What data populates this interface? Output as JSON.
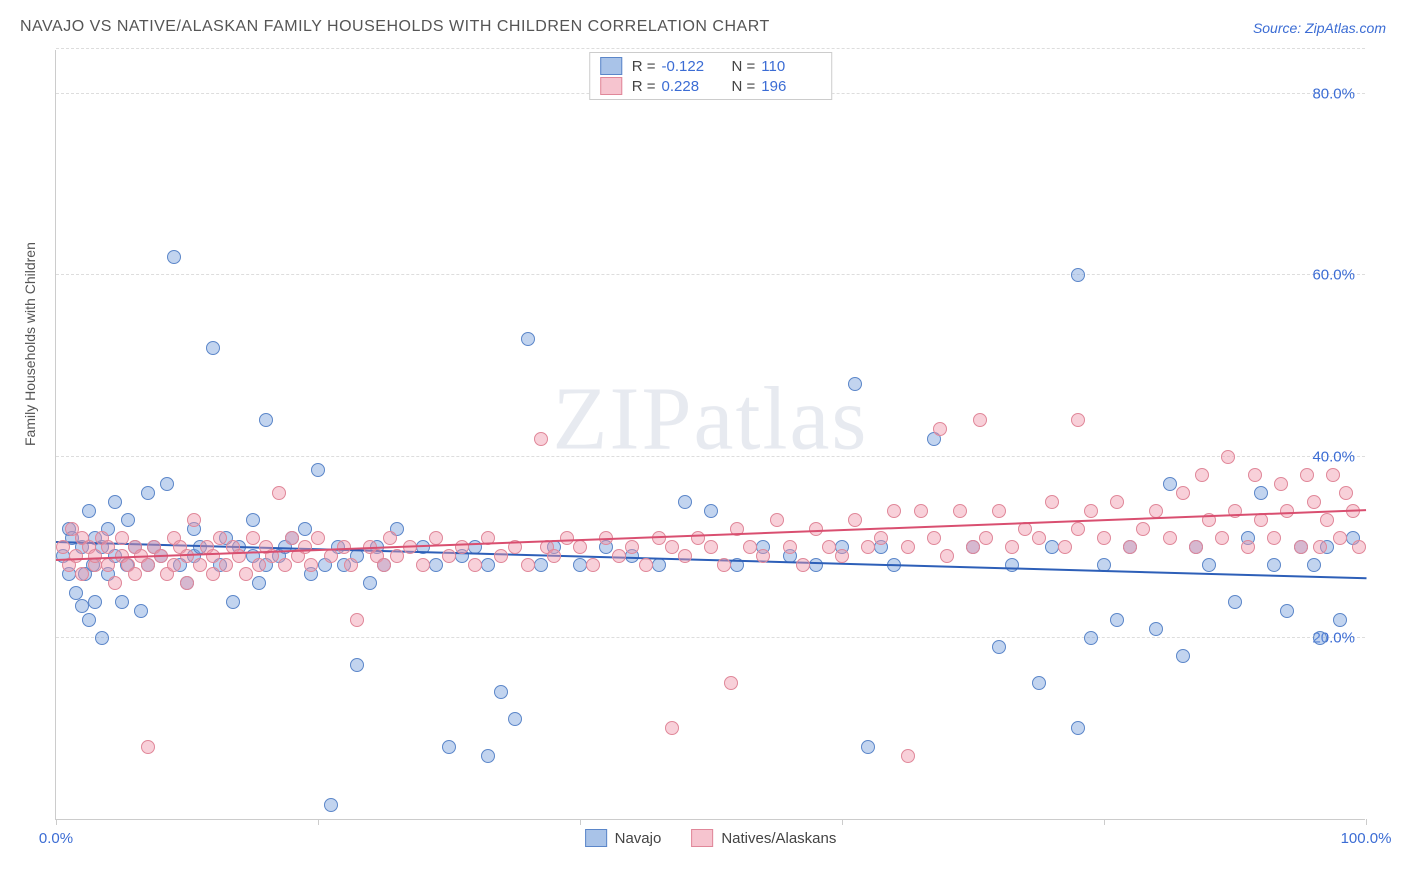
{
  "title": "NAVAJO VS NATIVE/ALASKAN FAMILY HOUSEHOLDS WITH CHILDREN CORRELATION CHART",
  "source": "Source: ZipAtlas.com",
  "watermark": "ZIPatlas",
  "y_axis_label": "Family Households with Children",
  "chart": {
    "type": "scatter",
    "xlim": [
      0,
      100
    ],
    "ylim": [
      0,
      85
    ],
    "y_ticks": [
      20,
      40,
      60,
      80
    ],
    "y_tick_labels": [
      "20.0%",
      "40.0%",
      "60.0%",
      "80.0%"
    ],
    "x_ticks": [
      0,
      20,
      40,
      60,
      80,
      100
    ],
    "x_tick_labels_shown": [
      {
        "pos": 0,
        "label": "0.0%"
      },
      {
        "pos": 100,
        "label": "100.0%"
      }
    ],
    "grid_color": "#dddddd",
    "background_color": "#ffffff",
    "marker_radius": 7,
    "marker_border_width": 1,
    "series": [
      {
        "name": "Navajo",
        "fill_color": "rgba(120, 160, 220, 0.45)",
        "border_color": "#5b86c9",
        "legend_fill": "#a9c3e8",
        "legend_border": "#5b86c9",
        "R": "-0.122",
        "N": "110",
        "trend": {
          "x1": 0,
          "y1": 30.5,
          "x2": 100,
          "y2": 26.5,
          "color": "#2d5fb8"
        },
        "points": [
          [
            0.5,
            29
          ],
          [
            1,
            32
          ],
          [
            1,
            27
          ],
          [
            1.5,
            25
          ],
          [
            1.2,
            31
          ],
          [
            2,
            23.5
          ],
          [
            2,
            30
          ],
          [
            2.2,
            27
          ],
          [
            2.5,
            22
          ],
          [
            2.5,
            34
          ],
          [
            2.8,
            28
          ],
          [
            3,
            31
          ],
          [
            3,
            24
          ],
          [
            3.5,
            20
          ],
          [
            3.5,
            30
          ],
          [
            4,
            32
          ],
          [
            4,
            27
          ],
          [
            4.5,
            29
          ],
          [
            4.5,
            35
          ],
          [
            5,
            24
          ],
          [
            5.4,
            28
          ],
          [
            5.5,
            33
          ],
          [
            6,
            30
          ],
          [
            6.5,
            23
          ],
          [
            7,
            36
          ],
          [
            7,
            28
          ],
          [
            7.5,
            30
          ],
          [
            8,
            29
          ],
          [
            8.5,
            37
          ],
          [
            9,
            62
          ],
          [
            9.5,
            28
          ],
          [
            10,
            26
          ],
          [
            10.5,
            32
          ],
          [
            10.5,
            29
          ],
          [
            11,
            30
          ],
          [
            12,
            52
          ],
          [
            12.5,
            28
          ],
          [
            13,
            31
          ],
          [
            13.5,
            24
          ],
          [
            14,
            30
          ],
          [
            15,
            29
          ],
          [
            15,
            33
          ],
          [
            15.5,
            26
          ],
          [
            16,
            44
          ],
          [
            16,
            28
          ],
          [
            17,
            29
          ],
          [
            17.5,
            30
          ],
          [
            18,
            31
          ],
          [
            19,
            32
          ],
          [
            19.5,
            27
          ],
          [
            20,
            38.5
          ],
          [
            20.5,
            28
          ],
          [
            21,
            1.5
          ],
          [
            21.5,
            30
          ],
          [
            22,
            28
          ],
          [
            23,
            29
          ],
          [
            23,
            17
          ],
          [
            24,
            26
          ],
          [
            24.5,
            30
          ],
          [
            25,
            28
          ],
          [
            26,
            32
          ],
          [
            28,
            30
          ],
          [
            29,
            28
          ],
          [
            30,
            8
          ],
          [
            31,
            29
          ],
          [
            32,
            30
          ],
          [
            33,
            7
          ],
          [
            33,
            28
          ],
          [
            34,
            14
          ],
          [
            35,
            11
          ],
          [
            36,
            53
          ],
          [
            37,
            28
          ],
          [
            38,
            30
          ],
          [
            40,
            28
          ],
          [
            42,
            30
          ],
          [
            44,
            29
          ],
          [
            46,
            28
          ],
          [
            48,
            35
          ],
          [
            50,
            34
          ],
          [
            52,
            28
          ],
          [
            54,
            30
          ],
          [
            56,
            29
          ],
          [
            58,
            28
          ],
          [
            60,
            30
          ],
          [
            61,
            48
          ],
          [
            62,
            8
          ],
          [
            63,
            30
          ],
          [
            64,
            28
          ],
          [
            67,
            42
          ],
          [
            70,
            30
          ],
          [
            72,
            19
          ],
          [
            73,
            28
          ],
          [
            75,
            15
          ],
          [
            76,
            30
          ],
          [
            78,
            60
          ],
          [
            78,
            10
          ],
          [
            79,
            20
          ],
          [
            80,
            28
          ],
          [
            81,
            22
          ],
          [
            82,
            30
          ],
          [
            84,
            21
          ],
          [
            85,
            37
          ],
          [
            86,
            18
          ],
          [
            87,
            30
          ],
          [
            88,
            28
          ],
          [
            90,
            24
          ],
          [
            91,
            31
          ],
          [
            92,
            36
          ],
          [
            93,
            28
          ],
          [
            94,
            23
          ],
          [
            95,
            30
          ],
          [
            96,
            28
          ],
          [
            96.5,
            20
          ],
          [
            97,
            30
          ],
          [
            98,
            22
          ],
          [
            99,
            31
          ]
        ]
      },
      {
        "name": "Natives/Alaskans",
        "fill_color": "rgba(240, 150, 170, 0.45)",
        "border_color": "#e08799",
        "legend_fill": "#f6c4cf",
        "legend_border": "#e08799",
        "R": "0.228",
        "N": "196",
        "trend": {
          "x1": 0,
          "y1": 28.5,
          "x2": 100,
          "y2": 34,
          "color": "#d94f70"
        },
        "points": [
          [
            0.5,
            30
          ],
          [
            1,
            28
          ],
          [
            1.2,
            32
          ],
          [
            1.5,
            29
          ],
          [
            2,
            31
          ],
          [
            2,
            27
          ],
          [
            2.5,
            30
          ],
          [
            3,
            28
          ],
          [
            3,
            29
          ],
          [
            3.5,
            31
          ],
          [
            4,
            28
          ],
          [
            4,
            30
          ],
          [
            4.5,
            26
          ],
          [
            5,
            29
          ],
          [
            5,
            31
          ],
          [
            5.5,
            28
          ],
          [
            6,
            30
          ],
          [
            6,
            27
          ],
          [
            6.5,
            29
          ],
          [
            7,
            28
          ],
          [
            7,
            8
          ],
          [
            7.5,
            30
          ],
          [
            8,
            29
          ],
          [
            8.5,
            27
          ],
          [
            9,
            31
          ],
          [
            9,
            28
          ],
          [
            9.5,
            30
          ],
          [
            10,
            29
          ],
          [
            10,
            26
          ],
          [
            10.5,
            33
          ],
          [
            11,
            28
          ],
          [
            11.5,
            30
          ],
          [
            12,
            29
          ],
          [
            12,
            27
          ],
          [
            12.5,
            31
          ],
          [
            13,
            28
          ],
          [
            13.5,
            30
          ],
          [
            14,
            29
          ],
          [
            14.5,
            27
          ],
          [
            15,
            31
          ],
          [
            15.5,
            28
          ],
          [
            16,
            30
          ],
          [
            16.5,
            29
          ],
          [
            17,
            36
          ],
          [
            17.5,
            28
          ],
          [
            18,
            31
          ],
          [
            18.5,
            29
          ],
          [
            19,
            30
          ],
          [
            19.5,
            28
          ],
          [
            20,
            31
          ],
          [
            21,
            29
          ],
          [
            22,
            30
          ],
          [
            22.5,
            28
          ],
          [
            23,
            22
          ],
          [
            24,
            30
          ],
          [
            24.5,
            29
          ],
          [
            25,
            28
          ],
          [
            25.5,
            31
          ],
          [
            26,
            29
          ],
          [
            27,
            30
          ],
          [
            28,
            28
          ],
          [
            29,
            31
          ],
          [
            30,
            29
          ],
          [
            31,
            30
          ],
          [
            32,
            28
          ],
          [
            33,
            31
          ],
          [
            34,
            29
          ],
          [
            35,
            30
          ],
          [
            36,
            28
          ],
          [
            37,
            42
          ],
          [
            37.5,
            30
          ],
          [
            38,
            29
          ],
          [
            39,
            31
          ],
          [
            40,
            30
          ],
          [
            41,
            28
          ],
          [
            42,
            31
          ],
          [
            43,
            29
          ],
          [
            44,
            30
          ],
          [
            45,
            28
          ],
          [
            46,
            31
          ],
          [
            47,
            10
          ],
          [
            47,
            30
          ],
          [
            48,
            29
          ],
          [
            49,
            31
          ],
          [
            50,
            30
          ],
          [
            51,
            28
          ],
          [
            51.5,
            15
          ],
          [
            52,
            32
          ],
          [
            53,
            30
          ],
          [
            54,
            29
          ],
          [
            55,
            33
          ],
          [
            56,
            30
          ],
          [
            57,
            28
          ],
          [
            58,
            32
          ],
          [
            59,
            30
          ],
          [
            60,
            29
          ],
          [
            61,
            33
          ],
          [
            62,
            30
          ],
          [
            63,
            31
          ],
          [
            64,
            34
          ],
          [
            65,
            7
          ],
          [
            65,
            30
          ],
          [
            66,
            34
          ],
          [
            67,
            31
          ],
          [
            67.5,
            43
          ],
          [
            68,
            29
          ],
          [
            69,
            34
          ],
          [
            70,
            30
          ],
          [
            70.5,
            44
          ],
          [
            71,
            31
          ],
          [
            72,
            34
          ],
          [
            73,
            30
          ],
          [
            74,
            32
          ],
          [
            75,
            31
          ],
          [
            76,
            35
          ],
          [
            77,
            30
          ],
          [
            78,
            44
          ],
          [
            78,
            32
          ],
          [
            79,
            34
          ],
          [
            80,
            31
          ],
          [
            81,
            35
          ],
          [
            82,
            30
          ],
          [
            83,
            32
          ],
          [
            84,
            34
          ],
          [
            85,
            31
          ],
          [
            86,
            36
          ],
          [
            87,
            30
          ],
          [
            87.5,
            38
          ],
          [
            88,
            33
          ],
          [
            89,
            31
          ],
          [
            89.5,
            40
          ],
          [
            90,
            34
          ],
          [
            91,
            30
          ],
          [
            91.5,
            38
          ],
          [
            92,
            33
          ],
          [
            93,
            31
          ],
          [
            93.5,
            37
          ],
          [
            94,
            34
          ],
          [
            95,
            30
          ],
          [
            95.5,
            38
          ],
          [
            96,
            35
          ],
          [
            96.5,
            30
          ],
          [
            97,
            33
          ],
          [
            97.5,
            38
          ],
          [
            98,
            31
          ],
          [
            98.5,
            36
          ],
          [
            99,
            34
          ],
          [
            99.5,
            30
          ]
        ]
      }
    ]
  }
}
